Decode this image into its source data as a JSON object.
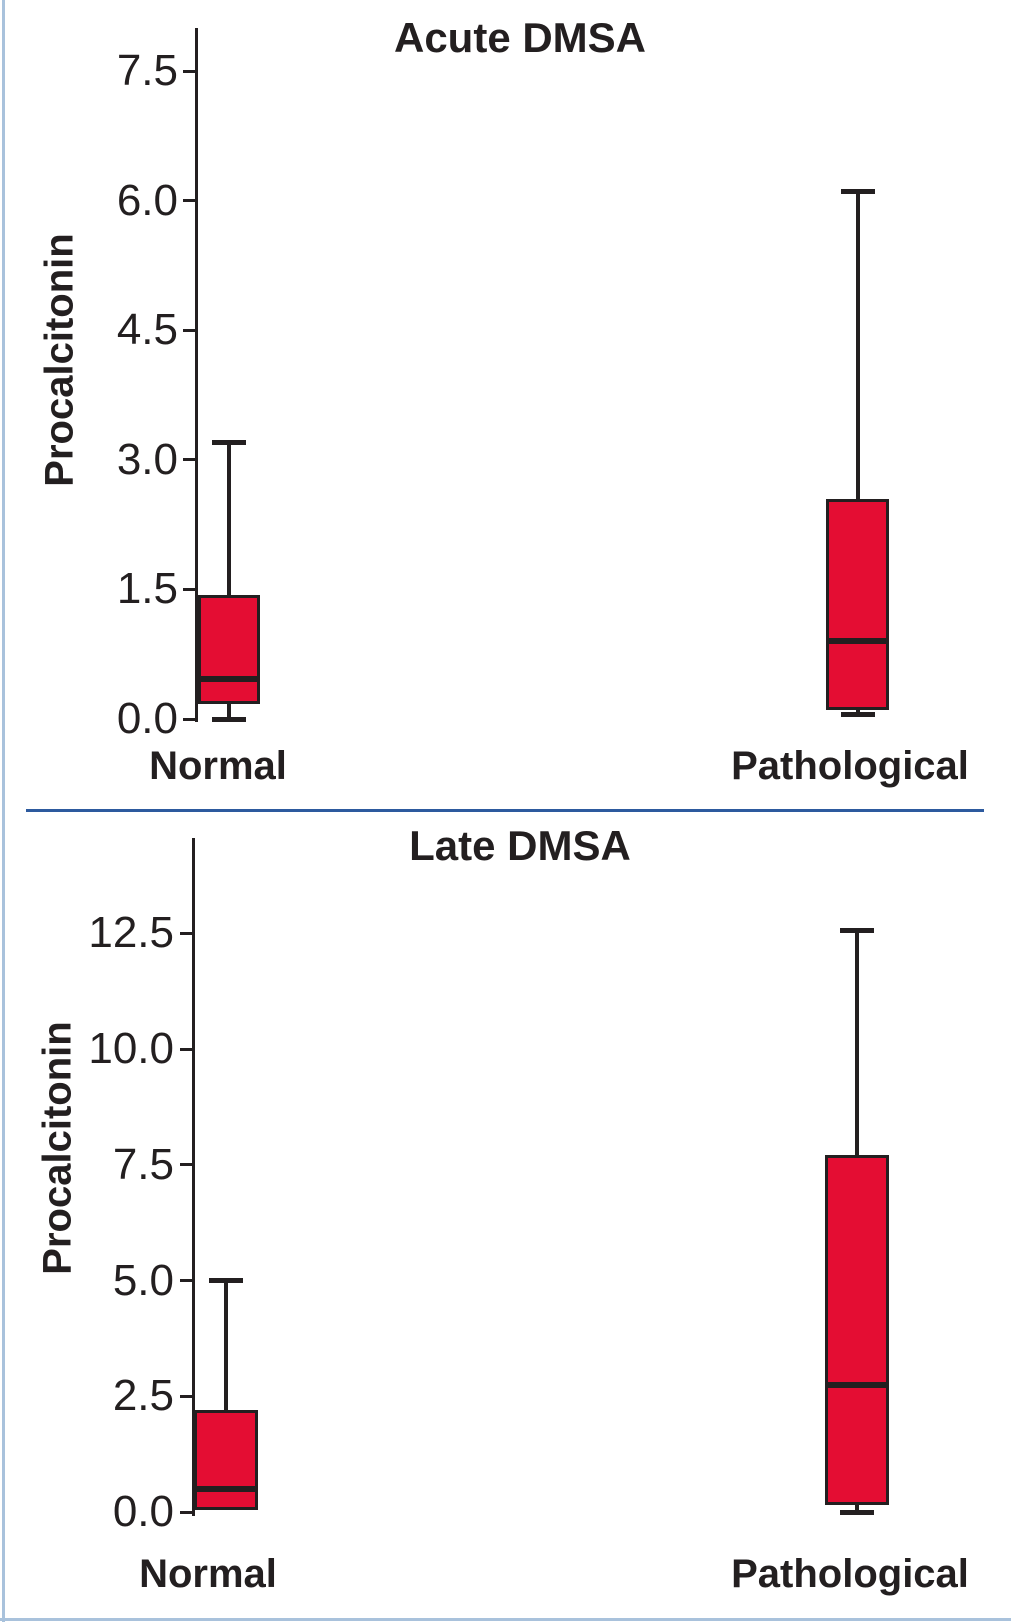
{
  "figure": {
    "background": "#ffffff",
    "left_border_color": "#a9c2dc",
    "bottom_border_color": "#a9c2dc",
    "divider_color": "#2d5a9e"
  },
  "palette": {
    "box_fill": "#e40d33",
    "line_color": "#231f20",
    "text_color": "#231f20"
  },
  "chart_data": [
    {
      "type": "box",
      "title": "Acute DMSA",
      "ylabel": "Procalcitonin",
      "xlabel": "",
      "ylim": [
        0,
        8.0
      ],
      "grid": false,
      "legend": "none",
      "yticks": [
        {
          "value": 7.5,
          "label": "7.5"
        },
        {
          "value": 6.0,
          "label": "6.0"
        },
        {
          "value": 4.5,
          "label": "4.5"
        },
        {
          "value": 3.0,
          "label": "3.0"
        },
        {
          "value": 1.5,
          "label": "1.5"
        },
        {
          "value": 0.0,
          "label": "0.0"
        }
      ],
      "categories": [
        "Normal",
        "Pathological"
      ],
      "series": [
        {
          "name": "Normal",
          "whisker_low": 0.0,
          "q1": 0.17,
          "median": 0.46,
          "q3": 1.43,
          "whisker_high": 3.2
        },
        {
          "name": "Pathological",
          "whisker_low": 0.05,
          "q1": 0.1,
          "median": 0.9,
          "q3": 2.55,
          "whisker_high": 6.1
        }
      ]
    },
    {
      "type": "box",
      "title": "Late DMSA",
      "ylabel": "Procalcitonin",
      "xlabel": "",
      "ylim": [
        0,
        14.6
      ],
      "grid": false,
      "legend": "none",
      "yticks": [
        {
          "value": 12.5,
          "label": "12.5"
        },
        {
          "value": 10.0,
          "label": "10.0"
        },
        {
          "value": 7.5,
          "label": "7.5"
        },
        {
          "value": 5.0,
          "label": "5.0"
        },
        {
          "value": 2.5,
          "label": "2.5"
        },
        {
          "value": 0.0,
          "label": "0.0"
        }
      ],
      "categories": [
        "Normal",
        "Pathological"
      ],
      "series": [
        {
          "name": "Normal",
          "whisker_low": null,
          "q1": 0.05,
          "median": 0.5,
          "q3": 2.2,
          "whisker_high": 5.0
        },
        {
          "name": "Pathological",
          "whisker_low": 0.0,
          "q1": 0.15,
          "median": 2.75,
          "q3": 7.7,
          "whisker_high": 12.55
        }
      ]
    }
  ]
}
